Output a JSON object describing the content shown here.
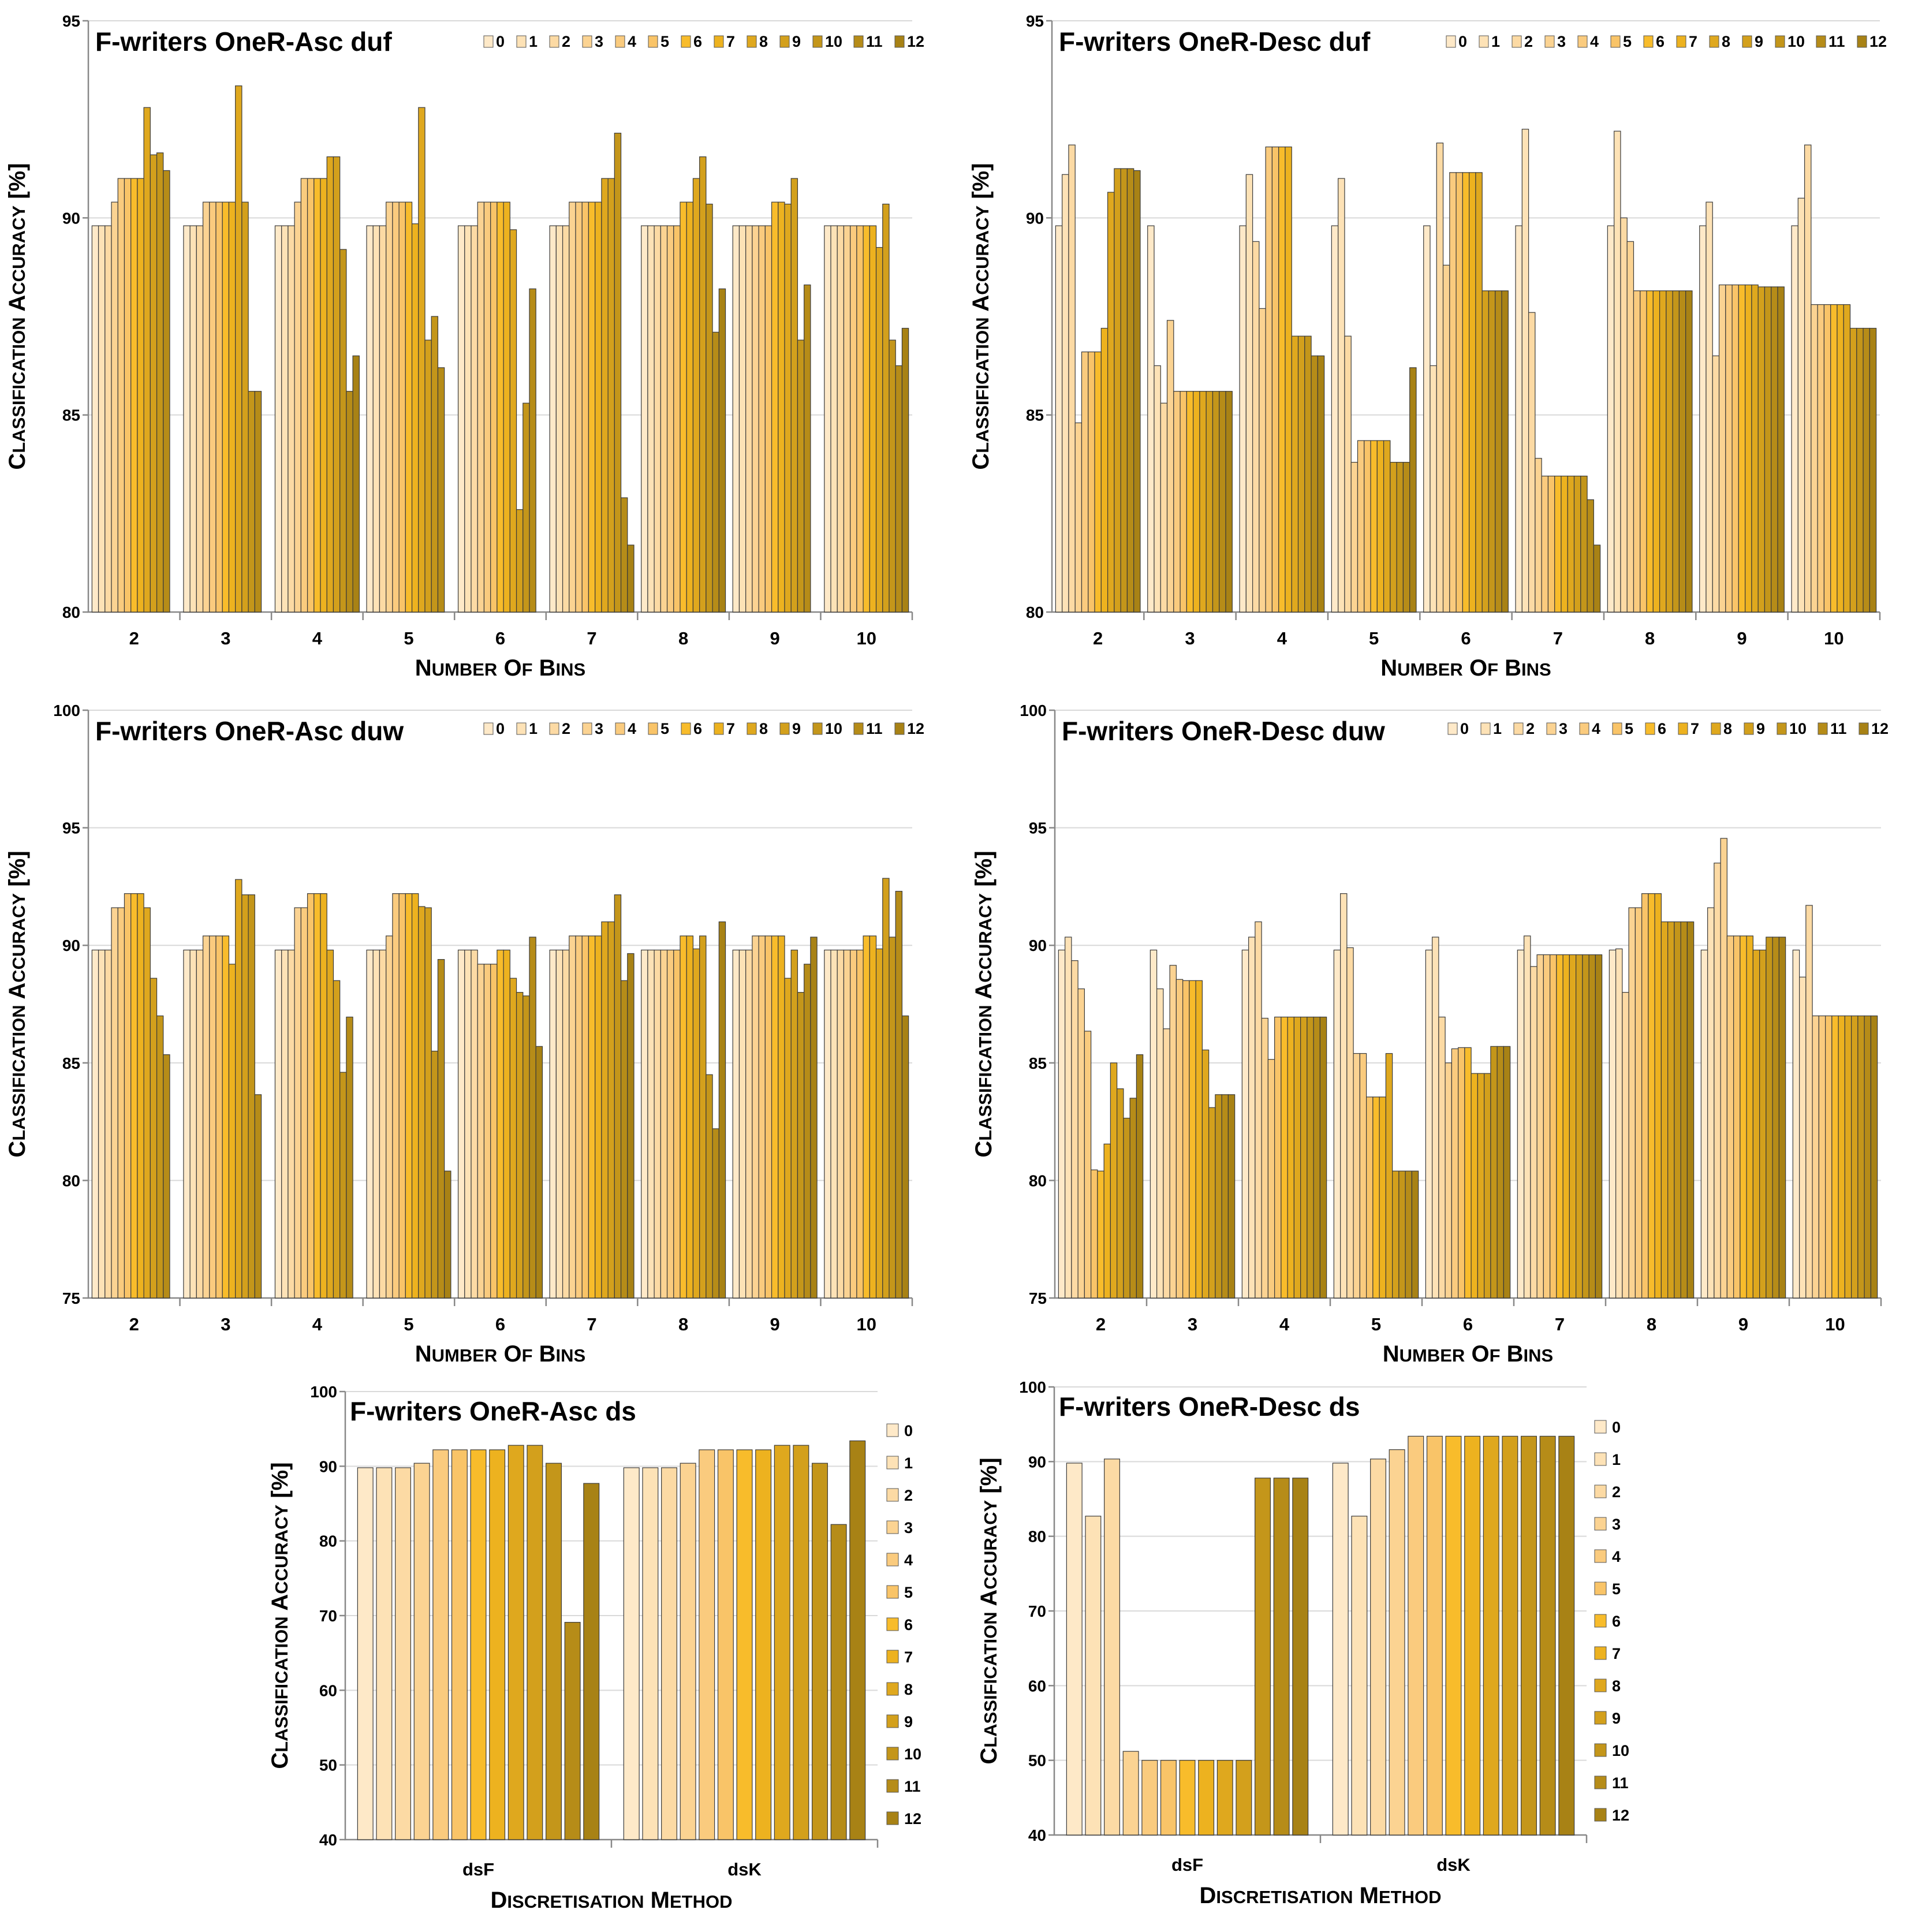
{
  "palette": [
    "#FEE9C8",
    "#FDE2B6",
    "#FCDAA4",
    "#FBD392",
    "#FACB7E",
    "#F9C468",
    "#F8BC2B",
    "#EDB21F",
    "#DFA81E",
    "#D3A01C",
    "#C4961A",
    "#B68C18",
    "#A88215"
  ],
  "chart_data": [
    {
      "type": "bar",
      "title": "F-writers OneR-Asc duf",
      "xlabel": "Number of bins",
      "ylabel": "Classification accuracy [%]",
      "ylim": [
        80,
        95
      ],
      "yticks": [
        80,
        85,
        90,
        95
      ],
      "legend_position": "top-right",
      "categories": [
        "2",
        "3",
        "4",
        "5",
        "6",
        "7",
        "8",
        "9",
        "10"
      ],
      "series": [
        {
          "name": "0",
          "values": [
            89.8,
            89.8,
            89.8,
            89.8,
            89.8,
            89.8,
            89.8,
            89.8,
            89.8
          ]
        },
        {
          "name": "1",
          "values": [
            89.8,
            89.8,
            89.8,
            89.8,
            89.8,
            89.8,
            89.8,
            89.8,
            89.8
          ]
        },
        {
          "name": "2",
          "values": [
            89.8,
            89.8,
            89.8,
            89.8,
            89.8,
            89.8,
            89.8,
            89.8,
            89.8
          ]
        },
        {
          "name": "3",
          "values": [
            90.4,
            90.4,
            90.4,
            90.4,
            90.4,
            90.4,
            89.8,
            89.8,
            89.8
          ]
        },
        {
          "name": "4",
          "values": [
            91.0,
            90.4,
            91.0,
            90.4,
            90.4,
            90.4,
            89.8,
            89.8,
            89.8
          ]
        },
        {
          "name": "5",
          "values": [
            91.0,
            90.4,
            91.0,
            90.4,
            90.4,
            90.4,
            89.8,
            89.8,
            89.8
          ]
        },
        {
          "name": "6",
          "values": [
            91.0,
            90.4,
            91.0,
            90.4,
            90.4,
            90.4,
            90.4,
            90.4,
            89.8
          ]
        },
        {
          "name": "7",
          "values": [
            91.0,
            90.4,
            91.0,
            89.85,
            90.4,
            90.4,
            90.4,
            90.4,
            89.8
          ]
        },
        {
          "name": "8",
          "values": [
            92.8,
            93.35,
            91.55,
            92.8,
            89.7,
            91.0,
            91.0,
            90.35,
            89.25
          ]
        },
        {
          "name": "9",
          "values": [
            91.6,
            90.4,
            91.55,
            86.9,
            82.6,
            91.0,
            91.55,
            91.0,
            90.35
          ]
        },
        {
          "name": "10",
          "values": [
            91.65,
            85.6,
            89.2,
            87.5,
            85.3,
            92.15,
            90.35,
            86.9,
            86.9
          ]
        },
        {
          "name": "11",
          "values": [
            91.2,
            85.6,
            85.6,
            86.2,
            88.2,
            82.9,
            87.1,
            88.3,
            86.25
          ]
        },
        {
          "name": "12",
          "values": [
            null,
            null,
            86.5,
            null,
            null,
            81.7,
            88.2,
            null,
            87.2
          ]
        }
      ]
    },
    {
      "type": "bar",
      "title": "F-writers OneR-Desc duf",
      "xlabel": "Number of bins",
      "ylabel": "Classification accuracy [%]",
      "ylim": [
        80,
        95
      ],
      "yticks": [
        80,
        85,
        90,
        95
      ],
      "legend_position": "top-right",
      "categories": [
        "2",
        "3",
        "4",
        "5",
        "6",
        "7",
        "8",
        "9",
        "10"
      ],
      "series": [
        {
          "name": "0",
          "values": [
            89.8,
            89.8,
            89.8,
            89.8,
            89.8,
            89.8,
            89.8,
            89.8,
            89.8
          ]
        },
        {
          "name": "1",
          "values": [
            91.1,
            86.25,
            91.1,
            91.0,
            86.25,
            92.25,
            92.2,
            90.4,
            90.5
          ]
        },
        {
          "name": "2",
          "values": [
            91.85,
            85.3,
            89.4,
            87.0,
            91.9,
            87.6,
            90.0,
            86.5,
            91.85
          ]
        },
        {
          "name": "3",
          "values": [
            84.8,
            87.4,
            87.7,
            83.8,
            88.8,
            83.9,
            89.4,
            88.3,
            87.8
          ]
        },
        {
          "name": "4",
          "values": [
            86.6,
            85.6,
            91.8,
            84.35,
            91.15,
            83.45,
            88.15,
            88.3,
            87.8
          ]
        },
        {
          "name": "5",
          "values": [
            86.6,
            85.6,
            91.8,
            84.35,
            91.15,
            83.45,
            88.15,
            88.3,
            87.8
          ]
        },
        {
          "name": "6",
          "values": [
            86.6,
            85.6,
            91.8,
            84.35,
            91.15,
            83.45,
            88.15,
            88.3,
            87.8
          ]
        },
        {
          "name": "7",
          "values": [
            87.2,
            85.6,
            91.8,
            84.35,
            91.15,
            83.45,
            88.15,
            88.3,
            87.8
          ]
        },
        {
          "name": "8",
          "values": [
            90.65,
            85.6,
            87.0,
            84.35,
            91.15,
            83.45,
            88.15,
            88.3,
            87.8
          ]
        },
        {
          "name": "9",
          "values": [
            91.25,
            85.6,
            87.0,
            83.8,
            88.15,
            83.45,
            88.15,
            88.25,
            87.2
          ]
        },
        {
          "name": "10",
          "values": [
            91.25,
            85.6,
            87.0,
            83.8,
            88.15,
            83.45,
            88.15,
            88.25,
            87.2
          ]
        },
        {
          "name": "11",
          "values": [
            91.25,
            85.6,
            86.5,
            83.8,
            88.15,
            82.85,
            88.15,
            88.25,
            87.2
          ]
        },
        {
          "name": "12",
          "values": [
            91.2,
            85.6,
            86.5,
            86.2,
            88.15,
            81.7,
            88.15,
            88.25,
            87.2
          ]
        }
      ]
    },
    {
      "type": "bar",
      "title": "F-writers OneR-Asc duw",
      "xlabel": "Number of bins",
      "ylabel": "Classification accuracy [%]",
      "ylim": [
        75,
        100
      ],
      "yticks": [
        75,
        80,
        85,
        90,
        95,
        100
      ],
      "legend_position": "top-right",
      "categories": [
        "2",
        "3",
        "4",
        "5",
        "6",
        "7",
        "8",
        "9",
        "10"
      ],
      "series": [
        {
          "name": "0",
          "values": [
            89.8,
            89.8,
            89.8,
            89.8,
            89.8,
            89.8,
            89.8,
            89.8,
            89.8
          ]
        },
        {
          "name": "1",
          "values": [
            89.8,
            89.8,
            89.8,
            89.8,
            89.8,
            89.8,
            89.8,
            89.8,
            89.8
          ]
        },
        {
          "name": "2",
          "values": [
            89.8,
            89.8,
            89.8,
            89.8,
            89.8,
            89.8,
            89.8,
            89.8,
            89.8
          ]
        },
        {
          "name": "3",
          "values": [
            91.6,
            90.4,
            91.6,
            90.4,
            89.2,
            90.4,
            89.8,
            90.4,
            89.8
          ]
        },
        {
          "name": "4",
          "values": [
            91.6,
            90.4,
            91.6,
            92.2,
            89.2,
            90.4,
            89.8,
            90.4,
            89.8
          ]
        },
        {
          "name": "5",
          "values": [
            92.2,
            90.4,
            92.2,
            92.2,
            89.2,
            90.4,
            89.8,
            90.4,
            89.8
          ]
        },
        {
          "name": "6",
          "values": [
            92.2,
            90.4,
            92.2,
            92.2,
            89.8,
            90.4,
            90.4,
            90.4,
            90.4
          ]
        },
        {
          "name": "7",
          "values": [
            92.2,
            89.2,
            92.2,
            92.2,
            89.8,
            90.4,
            90.4,
            90.4,
            90.4
          ]
        },
        {
          "name": "8",
          "values": [
            91.6,
            92.8,
            89.8,
            91.65,
            88.6,
            91.0,
            89.85,
            88.6,
            89.85
          ]
        },
        {
          "name": "9",
          "values": [
            88.6,
            92.15,
            88.5,
            91.6,
            88.0,
            91.0,
            90.4,
            89.8,
            92.85
          ]
        },
        {
          "name": "10",
          "values": [
            87.0,
            92.15,
            84.6,
            85.5,
            87.85,
            92.15,
            84.5,
            88.0,
            90.35
          ]
        },
        {
          "name": "11",
          "values": [
            85.35,
            83.65,
            86.95,
            89.4,
            90.35,
            88.5,
            82.2,
            89.2,
            92.3
          ]
        },
        {
          "name": "12",
          "values": [
            null,
            null,
            null,
            80.4,
            85.7,
            89.65,
            91.0,
            90.35,
            87.0
          ]
        }
      ]
    },
    {
      "type": "bar",
      "title": "F-writers OneR-Desc duw",
      "xlabel": "Number of bins",
      "ylabel": "Classification accuracy [%]",
      "ylim": [
        75,
        100
      ],
      "yticks": [
        75,
        80,
        85,
        90,
        95,
        100
      ],
      "legend_position": "top-right",
      "categories": [
        "2",
        "3",
        "4",
        "5",
        "6",
        "7",
        "8",
        "9",
        "10"
      ],
      "series": [
        {
          "name": "0",
          "values": [
            89.8,
            89.8,
            89.8,
            89.8,
            89.8,
            89.8,
            89.8,
            89.8,
            89.8
          ]
        },
        {
          "name": "1",
          "values": [
            90.35,
            88.15,
            90.35,
            92.2,
            90.35,
            90.4,
            89.85,
            91.6,
            88.65
          ]
        },
        {
          "name": "2",
          "values": [
            89.35,
            86.45,
            91.0,
            89.9,
            86.95,
            89.1,
            88.0,
            93.5,
            91.7
          ]
        },
        {
          "name": "3",
          "values": [
            88.15,
            89.15,
            86.9,
            85.4,
            85.0,
            89.6,
            91.6,
            94.55,
            87.0
          ]
        },
        {
          "name": "4",
          "values": [
            86.35,
            88.55,
            85.15,
            85.4,
            85.6,
            89.6,
            91.6,
            90.4,
            87.0
          ]
        },
        {
          "name": "5",
          "values": [
            80.45,
            88.5,
            86.95,
            83.55,
            85.65,
            89.6,
            92.2,
            90.4,
            87.0
          ]
        },
        {
          "name": "6",
          "values": [
            80.4,
            88.5,
            86.95,
            83.55,
            85.65,
            89.6,
            92.2,
            90.4,
            87.0
          ]
        },
        {
          "name": "7",
          "values": [
            81.55,
            88.5,
            86.95,
            83.55,
            84.55,
            89.6,
            92.2,
            90.4,
            87.0
          ]
        },
        {
          "name": "8",
          "values": [
            85.0,
            85.55,
            86.95,
            85.4,
            84.55,
            89.6,
            91.0,
            89.8,
            87.0
          ]
        },
        {
          "name": "9",
          "values": [
            83.9,
            83.1,
            86.95,
            80.4,
            84.55,
            89.6,
            91.0,
            89.8,
            87.0
          ]
        },
        {
          "name": "10",
          "values": [
            82.65,
            83.65,
            86.95,
            80.4,
            85.7,
            89.6,
            91.0,
            90.35,
            87.0
          ]
        },
        {
          "name": "11",
          "values": [
            83.5,
            83.65,
            86.95,
            80.4,
            85.7,
            89.6,
            91.0,
            90.35,
            87.0
          ]
        },
        {
          "name": "12",
          "values": [
            85.35,
            83.65,
            86.95,
            80.4,
            85.7,
            89.6,
            91.0,
            90.35,
            87.0
          ]
        }
      ]
    },
    {
      "type": "bar",
      "title": "F-writers OneR-Asc ds",
      "xlabel": "Discretisation method",
      "ylabel": "Classification accuracy [%]",
      "ylim": [
        40,
        100
      ],
      "yticks": [
        40,
        50,
        60,
        70,
        80,
        90,
        100
      ],
      "legend_position": "right",
      "categories": [
        "dsF",
        "dsK"
      ],
      "series": [
        {
          "name": "0",
          "values": [
            89.8,
            89.8
          ]
        },
        {
          "name": "1",
          "values": [
            89.8,
            89.8
          ]
        },
        {
          "name": "2",
          "values": [
            89.8,
            89.8
          ]
        },
        {
          "name": "3",
          "values": [
            90.4,
            90.4
          ]
        },
        {
          "name": "4",
          "values": [
            92.2,
            92.2
          ]
        },
        {
          "name": "5",
          "values": [
            92.2,
            92.2
          ]
        },
        {
          "name": "6",
          "values": [
            92.2,
            92.2
          ]
        },
        {
          "name": "7",
          "values": [
            92.2,
            92.2
          ]
        },
        {
          "name": "8",
          "values": [
            92.8,
            92.8
          ]
        },
        {
          "name": "9",
          "values": [
            92.8,
            92.8
          ]
        },
        {
          "name": "10",
          "values": [
            90.4,
            90.4
          ]
        },
        {
          "name": "11",
          "values": [
            69.1,
            82.2
          ]
        },
        {
          "name": "12",
          "values": [
            87.7,
            93.4
          ]
        }
      ]
    },
    {
      "type": "bar",
      "title": "F-writers OneR-Desc ds",
      "xlabel": "Discretisation method",
      "ylabel": "Classification accuracy [%]",
      "ylim": [
        40,
        100
      ],
      "yticks": [
        40,
        50,
        60,
        70,
        80,
        90,
        100
      ],
      "legend_position": "right",
      "categories": [
        "dsF",
        "dsK"
      ],
      "series": [
        {
          "name": "0",
          "values": [
            89.8,
            89.8
          ]
        },
        {
          "name": "1",
          "values": [
            82.7,
            82.7
          ]
        },
        {
          "name": "2",
          "values": [
            90.35,
            90.35
          ]
        },
        {
          "name": "3",
          "values": [
            51.2,
            91.6
          ]
        },
        {
          "name": "4",
          "values": [
            50.0,
            93.4
          ]
        },
        {
          "name": "5",
          "values": [
            50.0,
            93.4
          ]
        },
        {
          "name": "6",
          "values": [
            50.0,
            93.4
          ]
        },
        {
          "name": "7",
          "values": [
            50.0,
            93.4
          ]
        },
        {
          "name": "8",
          "values": [
            50.0,
            93.4
          ]
        },
        {
          "name": "9",
          "values": [
            50.0,
            93.4
          ]
        },
        {
          "name": "10",
          "values": [
            87.8,
            93.4
          ]
        },
        {
          "name": "11",
          "values": [
            87.8,
            93.4
          ]
        },
        {
          "name": "12",
          "values": [
            87.8,
            93.4
          ]
        }
      ]
    }
  ]
}
